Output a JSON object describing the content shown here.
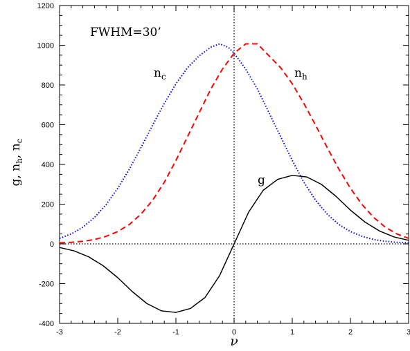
{
  "chart_data": {
    "type": "line",
    "annotation": "FWHM=30’",
    "xlabel": "ν",
    "ylabel": {
      "parts": [
        "g, n",
        "h",
        ", n",
        "c"
      ]
    },
    "xlim": [
      -3,
      3
    ],
    "ylim": [
      -400,
      1200
    ],
    "x_ticks": [
      -3,
      -2,
      -1,
      0,
      1,
      2,
      3
    ],
    "y_ticks": [
      -400,
      -200,
      0,
      200,
      400,
      600,
      800,
      1000,
      1200
    ],
    "reference_lines": {
      "horizontal_y": 0,
      "vertical_x": 0
    },
    "grid": false,
    "legend": "none",
    "series": [
      {
        "name": "n_c",
        "label_base": "n",
        "label_sub": "c",
        "style": "dotted",
        "color": "#0000ff",
        "x": [
          -3.0,
          -2.8,
          -2.6,
          -2.4,
          -2.2,
          -2.0,
          -1.8,
          -1.6,
          -1.4,
          -1.2,
          -1.0,
          -0.8,
          -0.6,
          -0.4,
          -0.25,
          -0.1,
          0.0,
          0.2,
          0.4,
          0.6,
          0.8,
          1.0,
          1.2,
          1.4,
          1.6,
          1.8,
          2.0,
          2.2,
          2.4,
          2.6,
          2.8,
          3.0
        ],
        "y": [
          28,
          50,
          84,
          133,
          198,
          280,
          377,
          485,
          598,
          707,
          806,
          887,
          947,
          990,
          1007,
          990,
          960,
          880,
          780,
          660,
          540,
          420,
          310,
          220,
          150,
          98,
          62,
          38,
          22,
          13,
          8,
          5
        ]
      },
      {
        "name": "n_h",
        "label_base": "n",
        "label_sub": "h",
        "style": "dashed",
        "color": "#ff0000",
        "x": [
          -3.0,
          -2.8,
          -2.6,
          -2.4,
          -2.2,
          -2.0,
          -1.8,
          -1.6,
          -1.4,
          -1.2,
          -1.0,
          -0.8,
          -0.6,
          -0.4,
          -0.2,
          0.0,
          0.2,
          0.4,
          0.6,
          0.8,
          1.0,
          1.2,
          1.4,
          1.6,
          1.8,
          2.0,
          2.2,
          2.4,
          2.6,
          2.8,
          3.0
        ],
        "y": [
          5,
          8,
          13,
          22,
          38,
          62,
          98,
          150,
          220,
          310,
          420,
          540,
          660,
          780,
          880,
          960,
          1007,
          1007,
          947,
          887,
          806,
          707,
          598,
          485,
          377,
          280,
          198,
          133,
          84,
          50,
          28
        ]
      },
      {
        "name": "g",
        "label_base": "g",
        "label_sub": "",
        "style": "solid",
        "color": "#000000",
        "x": [
          -3.0,
          -2.75,
          -2.5,
          -2.25,
          -2.0,
          -1.75,
          -1.5,
          -1.25,
          -1.0,
          -0.75,
          -0.5,
          -0.25,
          0.0,
          0.25,
          0.5,
          0.75,
          1.0,
          1.25,
          1.5,
          1.75,
          2.0,
          2.25,
          2.5,
          2.75,
          3.0
        ],
        "y": [
          -18,
          -35,
          -65,
          -110,
          -170,
          -240,
          -300,
          -337,
          -345,
          -325,
          -270,
          -160,
          0,
          160,
          270,
          325,
          345,
          337,
          300,
          240,
          170,
          110,
          65,
          35,
          18
        ]
      }
    ]
  }
}
